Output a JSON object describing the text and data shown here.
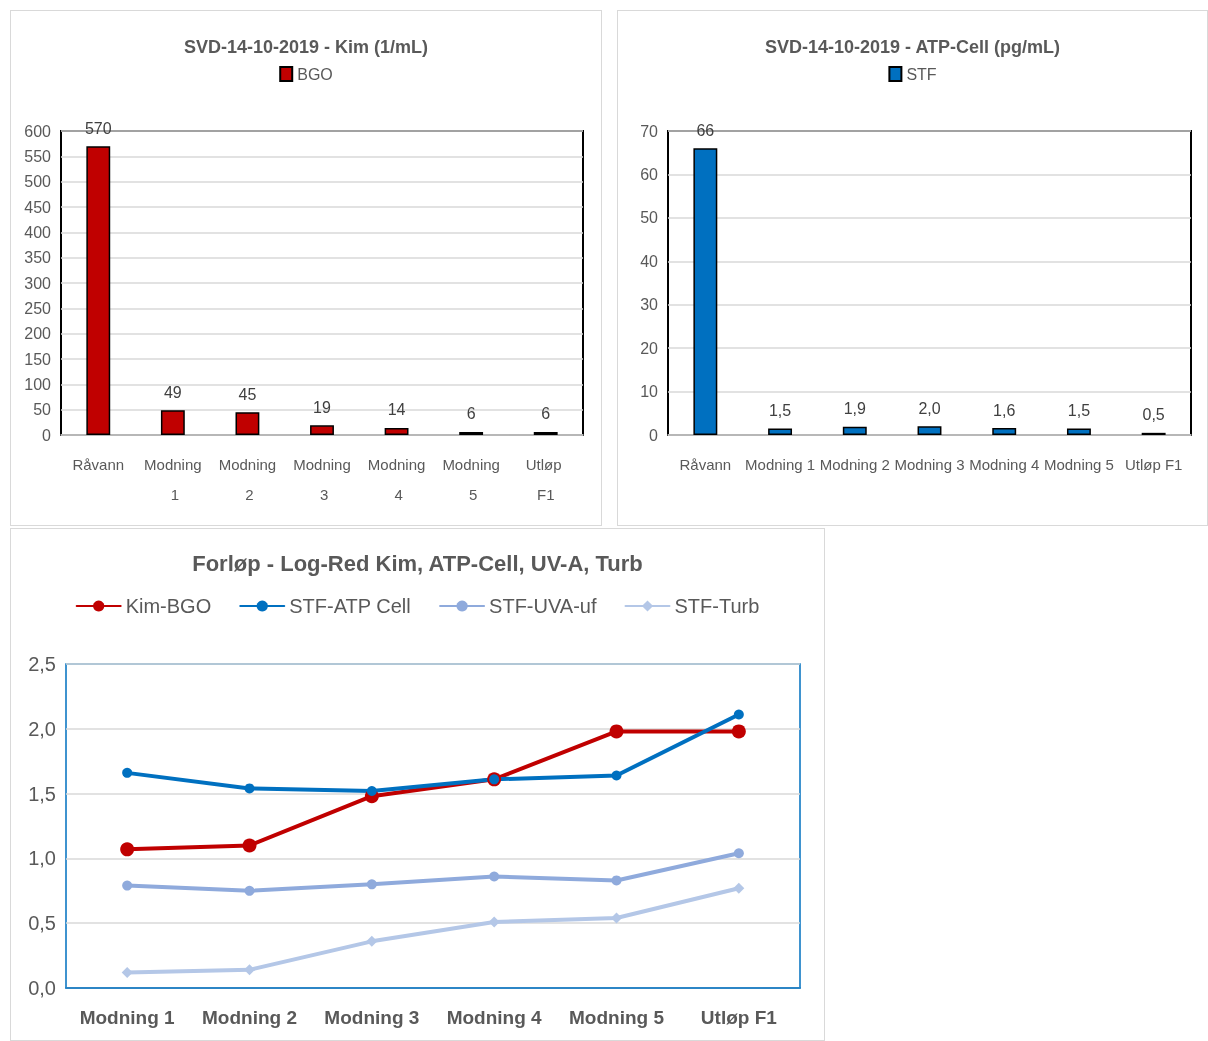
{
  "chart_data": [
    {
      "type": "bar",
      "title": "SVD-14-10-2019 - Kim (1/mL)",
      "categories": [
        "Råvann",
        "Modning 1",
        "Modning 2",
        "Modning 3",
        "Modning 4",
        "Modning 5",
        "Utløp F1"
      ],
      "series": [
        {
          "name": "BGO",
          "color": "#c00000",
          "values": [
            570,
            49,
            45,
            19,
            14,
            6,
            6
          ]
        }
      ],
      "ylim": [
        0,
        600
      ],
      "yticks": [
        0,
        50,
        100,
        150,
        200,
        250,
        300,
        350,
        400,
        450,
        500,
        550,
        600
      ],
      "grid": "y",
      "legend": "top",
      "data_labels": true
    },
    {
      "type": "bar",
      "title": "SVD-14-10-2019 - ATP-Cell (pg/mL)",
      "categories": [
        "Råvann",
        "Modning 1",
        "Modning 2",
        "Modning 3",
        "Modning 4",
        "Modning 5",
        "Utløp F1"
      ],
      "series": [
        {
          "name": "STF",
          "color": "#0070c0",
          "values": [
            66,
            1.5,
            1.9,
            2.0,
            1.6,
            1.5,
            0.5
          ],
          "value_labels": [
            "66",
            "1,5",
            "1,9",
            "2,0",
            "1,6",
            "1,5",
            "0,5"
          ]
        }
      ],
      "ylim": [
        0,
        70
      ],
      "yticks": [
        0,
        10,
        20,
        30,
        40,
        50,
        60,
        70
      ],
      "grid": "y",
      "legend": "top"
    },
    {
      "type": "line",
      "title": "Forløp - Log-Red Kim, ATP-Cell, UV-A, Turb",
      "categories": [
        "Modning 1",
        "Modning 2",
        "Modning 3",
        "Modning 4",
        "Modning 5",
        "Utløp F1"
      ],
      "series": [
        {
          "name": "Kim-BGO",
          "color": "#c00000",
          "marker": "circle",
          "values": [
            1.07,
            1.1,
            1.48,
            1.61,
            1.98,
            1.98
          ]
        },
        {
          "name": "STF-ATP Cell",
          "color": "#0070c0",
          "marker": "circle",
          "values": [
            1.66,
            1.54,
            1.52,
            1.61,
            1.64,
            2.11
          ]
        },
        {
          "name": "STF-UVA-uf",
          "color": "#8faadc",
          "marker": "circle",
          "values": [
            0.79,
            0.75,
            0.8,
            0.86,
            0.83,
            1.04
          ]
        },
        {
          "name": "STF-Turb",
          "color": "#b4c7e7",
          "marker": "diamond",
          "values": [
            0.12,
            0.14,
            0.36,
            0.51,
            0.54,
            0.77
          ]
        }
      ],
      "ylim": [
        0,
        2.5
      ],
      "yticks": [
        {
          "value": 0,
          "label": "0,0"
        },
        {
          "value": 0.5,
          "label": "0,5"
        },
        {
          "value": 1,
          "label": "1,0"
        },
        {
          "value": 1.5,
          "label": "1,5"
        },
        {
          "value": 2,
          "label": "2,0"
        },
        {
          "value": 2.5,
          "label": "2,5"
        }
      ],
      "grid": "y",
      "legend": "top",
      "line_style": "solid"
    }
  ]
}
